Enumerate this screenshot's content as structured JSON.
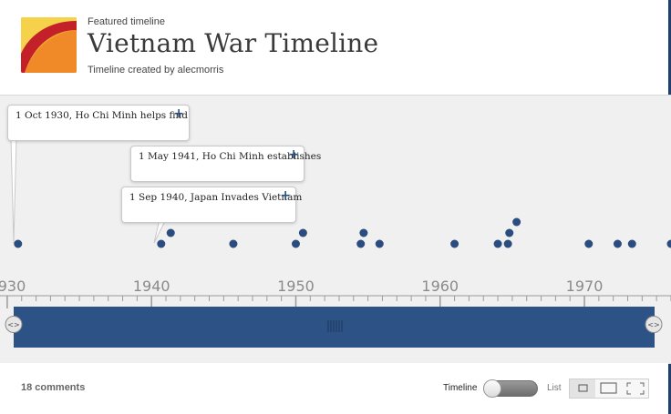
{
  "header": {
    "featured_label": "Featured timeline",
    "title": "Vietnam War Timeline",
    "byline": "Timeline created by alecmorris"
  },
  "timeline": {
    "year_range": [
      1929.5,
      1976
    ],
    "axis_labels": [
      "1930",
      "1940",
      "1950",
      "1960",
      "1970"
    ],
    "axis_years": [
      1930,
      1940,
      1950,
      1960,
      1970
    ],
    "events": [
      {
        "year": 1930.75,
        "row": 0
      },
      {
        "year": 1940.67,
        "row": 0
      },
      {
        "year": 1941.33,
        "row": 1
      },
      {
        "year": 1945.67,
        "row": 0
      },
      {
        "year": 1950.0,
        "row": 0
      },
      {
        "year": 1950.5,
        "row": 1
      },
      {
        "year": 1954.5,
        "row": 0
      },
      {
        "year": 1954.7,
        "row": 1
      },
      {
        "year": 1955.8,
        "row": 0
      },
      {
        "year": 1961.0,
        "row": 0
      },
      {
        "year": 1964.0,
        "row": 0
      },
      {
        "year": 1964.7,
        "row": 0
      },
      {
        "year": 1964.8,
        "row": 1
      },
      {
        "year": 1965.3,
        "row": 2
      },
      {
        "year": 1970.3,
        "row": 0
      },
      {
        "year": 1972.3,
        "row": 0
      },
      {
        "year": 1973.3,
        "row": 0
      },
      {
        "year": 1976.0,
        "row": 0
      }
    ],
    "callouts": [
      {
        "text": "1 Oct 1930, Ho Chi Minh helps find",
        "plus": "+"
      },
      {
        "text": "1 May 1941, Ho Chi Minh establishes",
        "plus": "+"
      },
      {
        "text": "1 Sep 1940, Japan Invades Vietnam",
        "plus": "+"
      }
    ],
    "colors": {
      "dot": "#2b4c7e",
      "bar": "#2d5286",
      "background": "#f0f0f0"
    }
  },
  "footer": {
    "comments": "18 comments",
    "timeline_label": "Timeline",
    "list_label": "List"
  }
}
